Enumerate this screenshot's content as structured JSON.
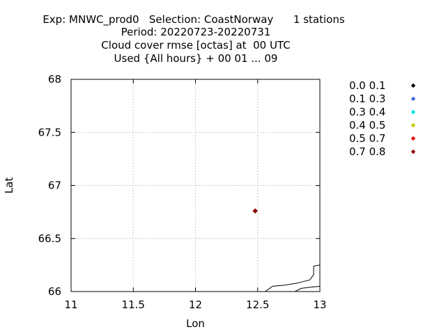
{
  "chart_data": {
    "type": "scatter",
    "title_lines": [
      "Exp: MNWC_prod0   Selection: CoastNorway      1 stations",
      "Period: 20220723-20220731",
      "Cloud cover rmse [octas] at  00 UTC",
      "Used {All hours} + 00 01 ... 09"
    ],
    "xlabel": "Lon",
    "ylabel": "Lat",
    "xlim": [
      11,
      13
    ],
    "ylim": [
      66,
      68
    ],
    "xticks": [
      "11",
      "11.5",
      "12",
      "12.5",
      "13"
    ],
    "yticks": [
      "66",
      "66.5",
      "67",
      "67.5",
      "68"
    ],
    "grid": true,
    "legend_position": "right",
    "legend": [
      {
        "label": "0.0 0.1",
        "color": "#000000"
      },
      {
        "label": "0.1 0.3",
        "color": "#4169e1"
      },
      {
        "label": "0.3 0.4",
        "color": "#00e5ee"
      },
      {
        "label": "0.4 0.5",
        "color": "#c8c800"
      },
      {
        "label": "0.5 0.7",
        "color": "#ee0000"
      },
      {
        "label": "0.7 0.8",
        "color": "#8b0000"
      }
    ],
    "points": [
      {
        "lon": 12.48,
        "lat": 66.76,
        "color": "#8b0000"
      }
    ],
    "coastline": [
      [
        [
          12.56,
          66.0
        ],
        [
          12.62,
          66.05
        ],
        [
          12.72,
          66.06
        ],
        [
          12.82,
          66.08
        ],
        [
          12.92,
          66.11
        ],
        [
          12.95,
          66.16
        ],
        [
          12.95,
          66.24
        ],
        [
          13.0,
          66.25
        ]
      ],
      [
        [
          12.8,
          66.0
        ],
        [
          12.85,
          66.03
        ],
        [
          12.92,
          66.04
        ],
        [
          13.0,
          66.05
        ]
      ]
    ]
  }
}
